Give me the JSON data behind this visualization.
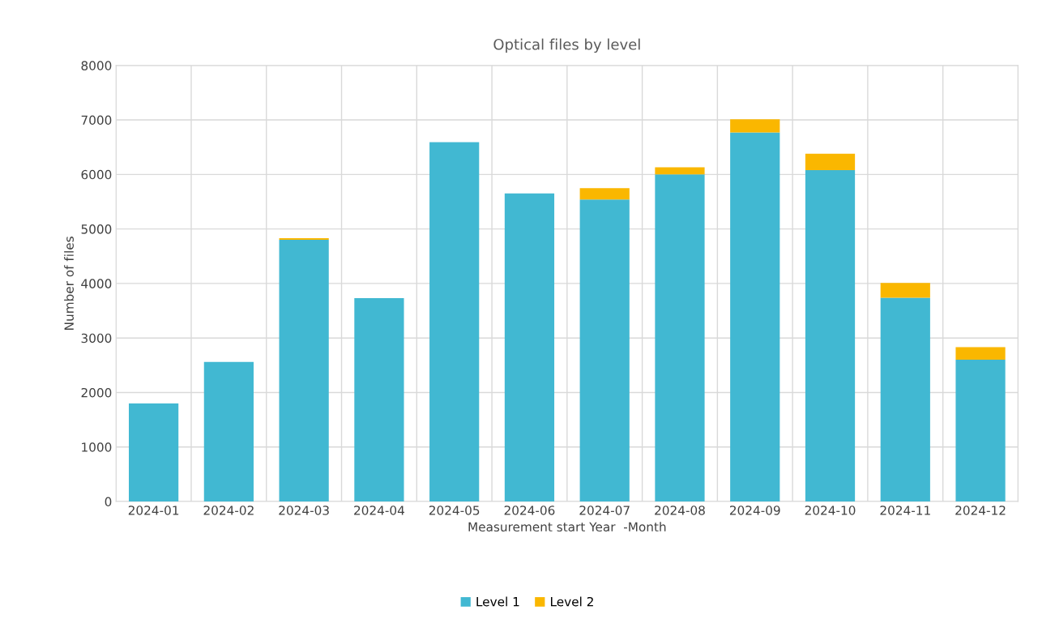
{
  "chart_data": {
    "type": "bar",
    "title": "Optical files by level",
    "xlabel": "Measurement start Year  -Month",
    "ylabel": "Number of files",
    "categories": [
      "2024-01",
      "2024-02",
      "2024-03",
      "2024-04",
      "2024-05",
      "2024-06",
      "2024-07",
      "2024-08",
      "2024-09",
      "2024-10",
      "2024-11",
      "2024-12"
    ],
    "stacked": true,
    "series": [
      {
        "name": "Level 1",
        "color": "#41b8d2",
        "values": [
          1800,
          2560,
          4800,
          3730,
          6590,
          5650,
          5540,
          6000,
          6770,
          6080,
          3740,
          2600
        ]
      },
      {
        "name": "Level 2",
        "color": "#fab700",
        "values": [
          0,
          0,
          30,
          0,
          0,
          0,
          210,
          130,
          240,
          300,
          270,
          230
        ]
      }
    ],
    "ylim": [
      0,
      8000
    ],
    "yticks": [
      0,
      1000,
      2000,
      3000,
      4000,
      5000,
      6000,
      7000,
      8000
    ],
    "grid": true,
    "legend": "bottom"
  }
}
